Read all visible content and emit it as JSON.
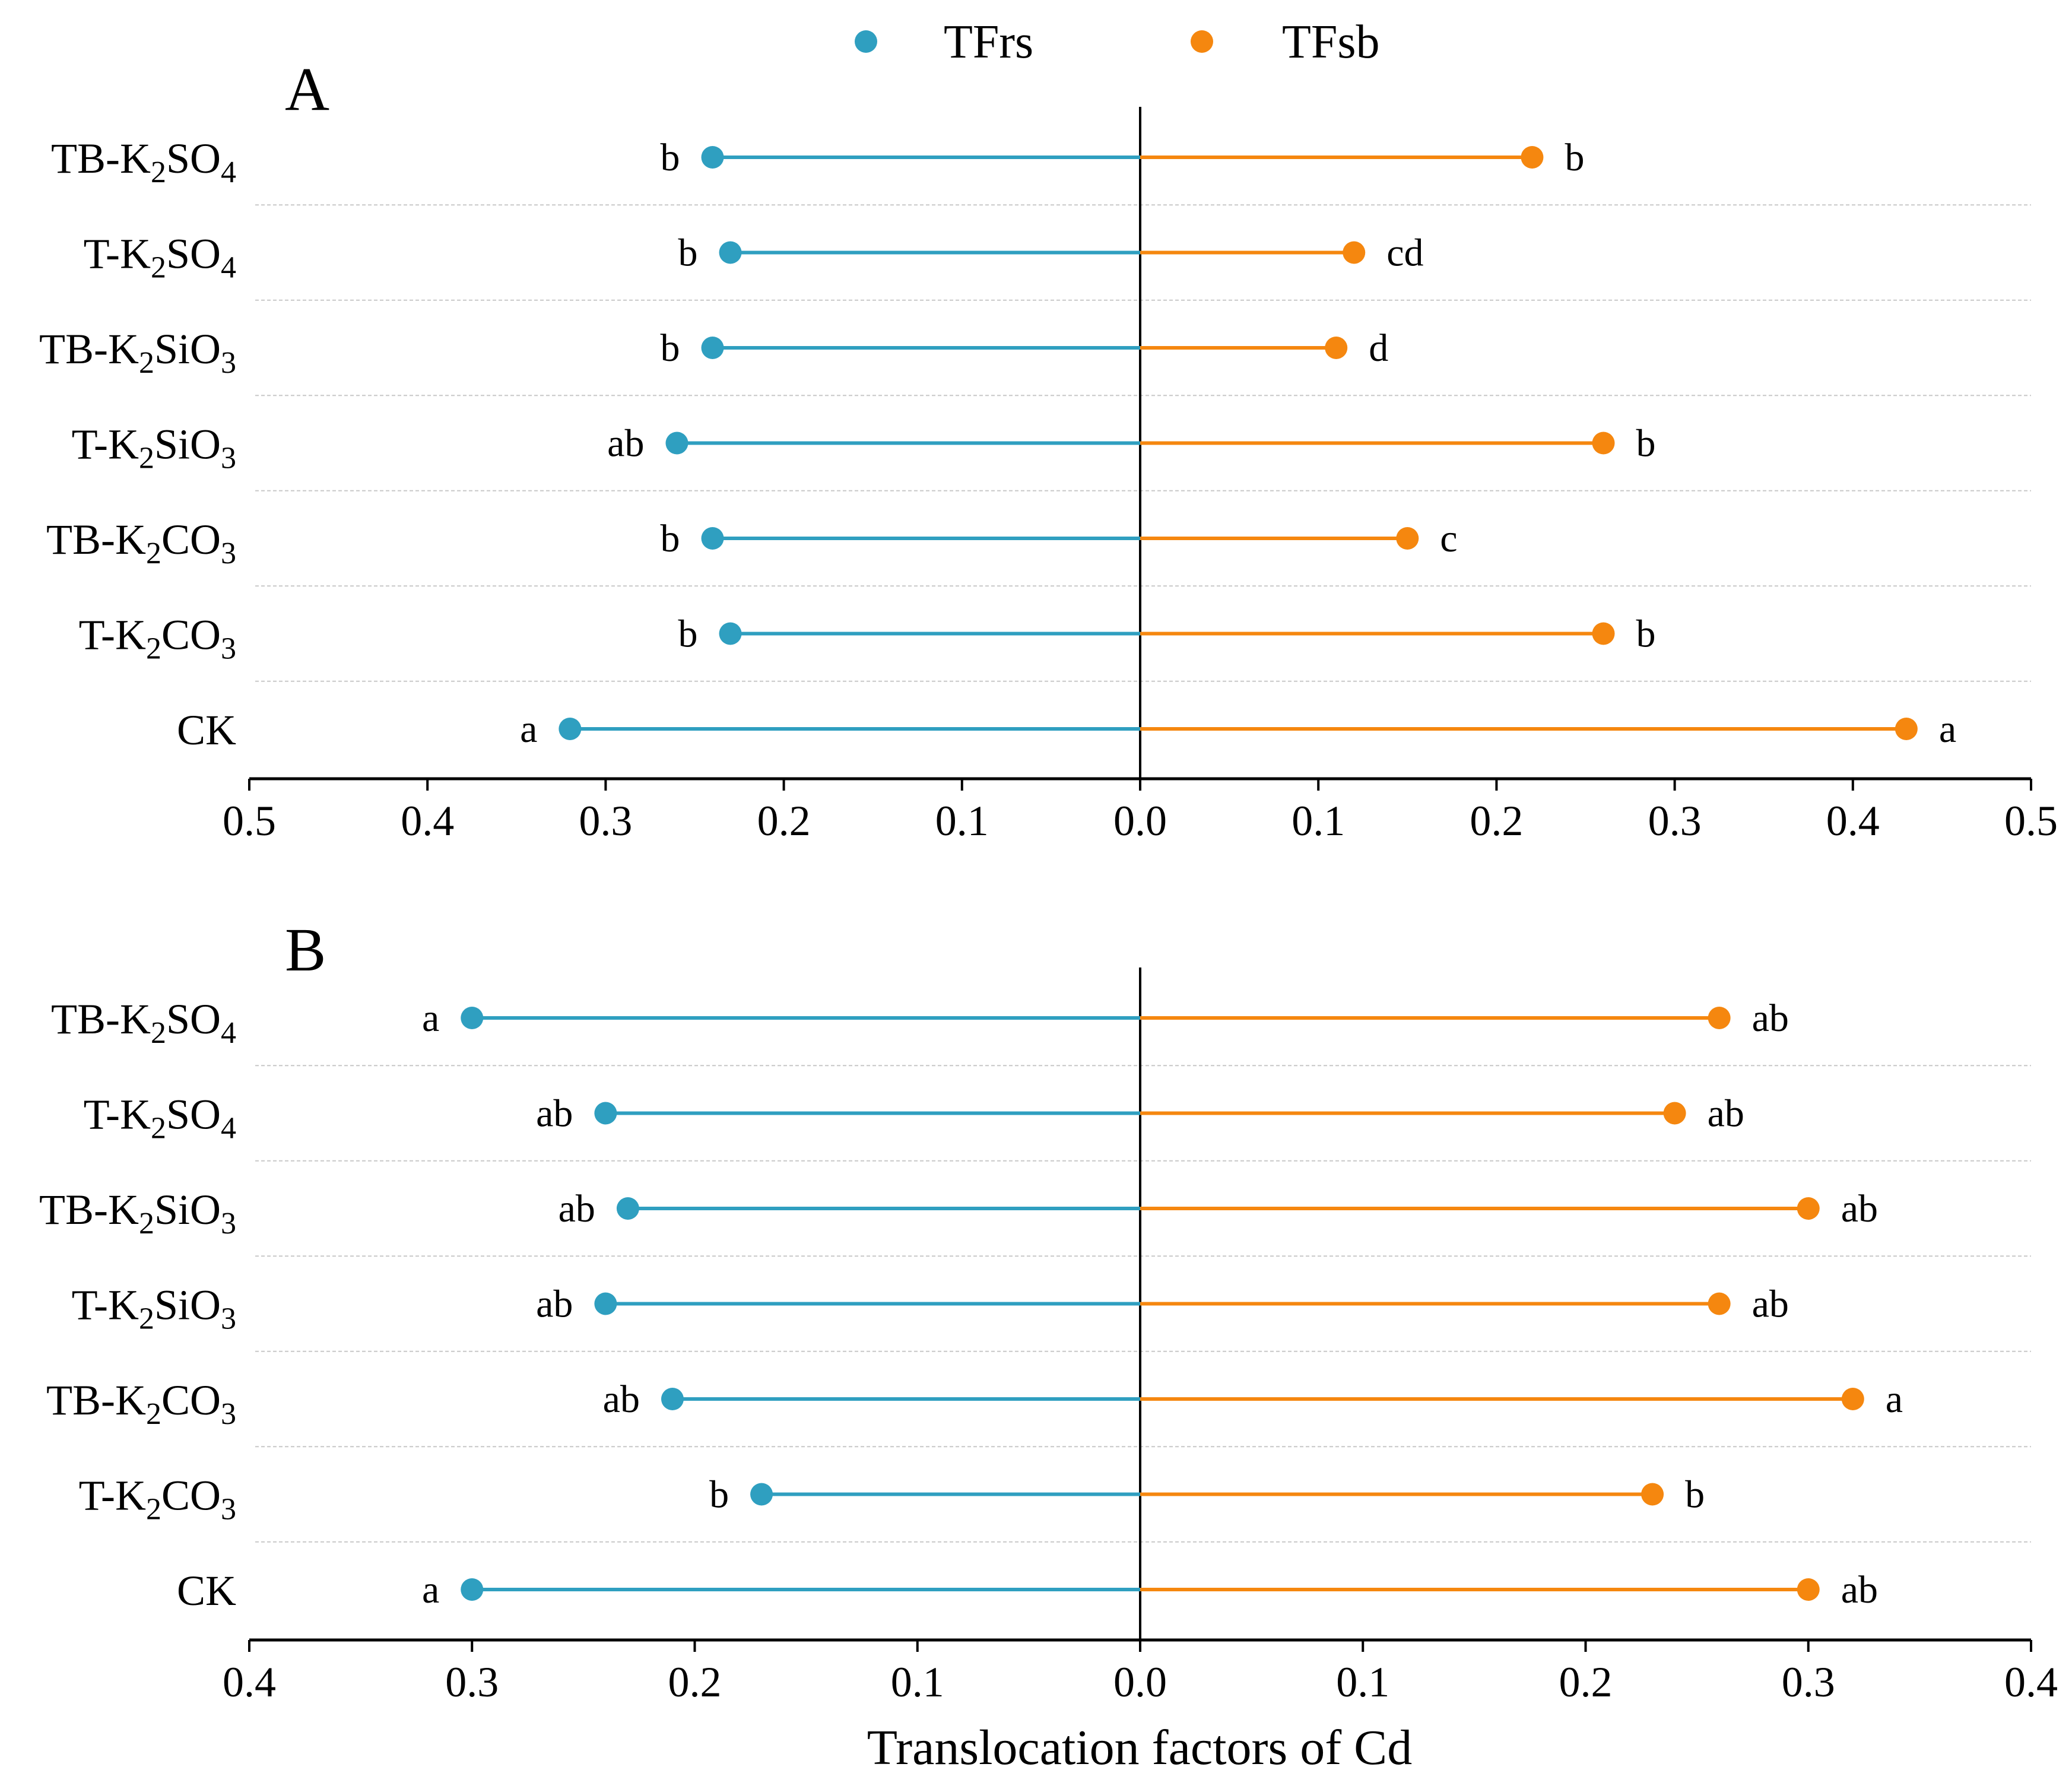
{
  "chart_data": {
    "type": "lollipop",
    "xlabel": "Translocation factors of Cd",
    "legend": [
      {
        "name": "TFrs",
        "color": "#2f9fc0"
      },
      {
        "name": "TFsb",
        "color": "#f5870f"
      }
    ],
    "legend_position": "top-center",
    "categories": [
      {
        "base": "TB-K",
        "sub1": "2",
        "mid": "SO",
        "sub2": "4"
      },
      {
        "base": "T-K",
        "sub1": "2",
        "mid": "SO",
        "sub2": "4"
      },
      {
        "base": "TB-K",
        "sub1": "2",
        "mid": "SiO",
        "sub2": "3"
      },
      {
        "base": "T-K",
        "sub1": "2",
        "mid": "SiO",
        "sub2": "3"
      },
      {
        "base": "TB-K",
        "sub1": "2",
        "mid": "CO",
        "sub2": "3"
      },
      {
        "base": "T-K",
        "sub1": "2",
        "mid": "CO",
        "sub2": "3"
      },
      {
        "base": "CK",
        "sub1": "",
        "mid": "",
        "sub2": ""
      }
    ],
    "panels": [
      {
        "label": "A",
        "xlim": [
          -0.5,
          0.5
        ],
        "ticks": [
          "0.5",
          "0.4",
          "0.3",
          "0.2",
          "0.1",
          "0.0",
          "0.1",
          "0.2",
          "0.3",
          "0.4",
          "0.5"
        ],
        "series": [
          {
            "name": "TFrs",
            "values": [
              0.24,
              0.23,
              0.24,
              0.26,
              0.24,
              0.23,
              0.32
            ],
            "sig": [
              "b",
              "b",
              "b",
              "ab",
              "b",
              "b",
              "a"
            ]
          },
          {
            "name": "TFsb",
            "values": [
              0.22,
              0.12,
              0.11,
              0.26,
              0.15,
              0.26,
              0.43
            ],
            "sig": [
              "b",
              "cd",
              "d",
              "b",
              "c",
              "b",
              "a"
            ]
          }
        ]
      },
      {
        "label": "B",
        "xlim": [
          -0.4,
          0.4
        ],
        "ticks": [
          "0.4",
          "0.3",
          "0.2",
          "0.1",
          "0.0",
          "0.1",
          "0.2",
          "0.3",
          "0.4"
        ],
        "series": [
          {
            "name": "TFrs",
            "values": [
              0.3,
              0.24,
              0.23,
              0.24,
              0.21,
              0.17,
              0.3
            ],
            "sig": [
              "a",
              "ab",
              "ab",
              "ab",
              "ab",
              "b",
              "a"
            ]
          },
          {
            "name": "TFsb",
            "values": [
              0.26,
              0.24,
              0.3,
              0.26,
              0.32,
              0.23,
              0.3
            ],
            "sig": [
              "ab",
              "ab",
              "ab",
              "ab",
              "a",
              "b",
              "ab"
            ]
          }
        ]
      }
    ]
  }
}
